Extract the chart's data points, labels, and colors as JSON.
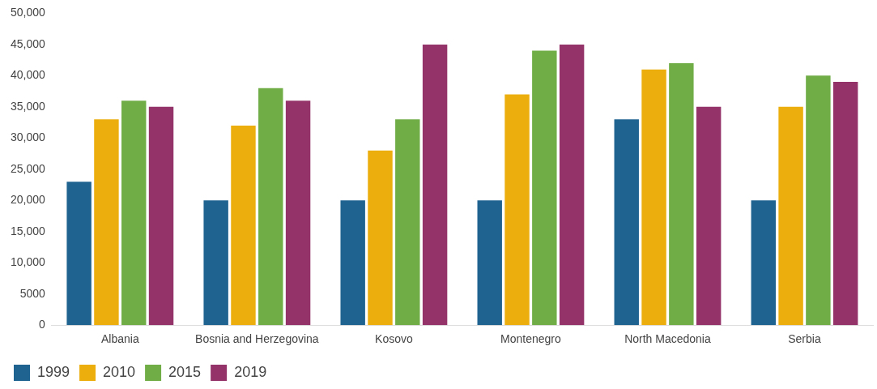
{
  "chart_data": {
    "type": "bar",
    "categories": [
      "Albania",
      "Bosnia and Herzegovina",
      "Kosovo",
      "Montenegro",
      "North Macedonia",
      "Serbia"
    ],
    "series": [
      {
        "name": "1999",
        "color": "#1f6391",
        "values": [
          23000,
          20000,
          20000,
          20000,
          33000,
          20000
        ]
      },
      {
        "name": "2010",
        "color": "#ebae0c",
        "values": [
          33000,
          32000,
          28000,
          37000,
          41000,
          35000
        ]
      },
      {
        "name": "2015",
        "color": "#70ad47",
        "values": [
          36000,
          38000,
          33000,
          44000,
          42000,
          40000
        ]
      },
      {
        "name": "2019",
        "color": "#93336a",
        "values": [
          35000,
          36000,
          45000,
          45000,
          35000,
          39000
        ]
      }
    ],
    "ylim": [
      0,
      50000
    ],
    "yticks": [
      0,
      5000,
      {
        "value": 10000,
        "label": "10,000"
      },
      {
        "value": 15000,
        "label": "15,000"
      },
      {
        "value": 20000,
        "label": "20,000"
      },
      {
        "value": 25000,
        "label": "25,000"
      },
      {
        "value": 30000,
        "label": "30,000"
      },
      {
        "value": 35000,
        "label": "35,000"
      },
      {
        "value": 40000,
        "label": "40,000"
      },
      {
        "value": 45000,
        "label": "45,000"
      },
      {
        "value": 50000,
        "label": "50,000"
      }
    ],
    "grid": false,
    "legend": "bottom left"
  }
}
